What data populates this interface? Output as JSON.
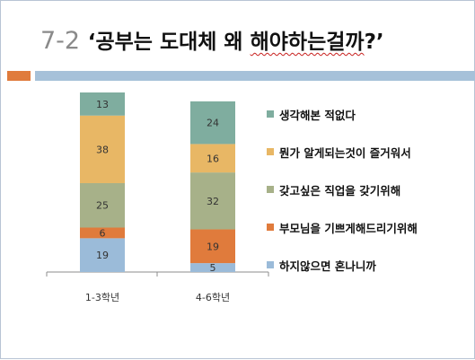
{
  "slide": {
    "title_number": "7-2",
    "title_open_quote": "‘",
    "title_part1": "공부는 도대체 왜 ",
    "title_part2": "해야하는걸까",
    "title_close": "?’"
  },
  "chart_data": {
    "type": "bar",
    "stacked": true,
    "categories": [
      "1-3학년",
      "4-6학년"
    ],
    "series": [
      {
        "name": "하지않으면 혼나니까",
        "values": [
          19,
          5
        ],
        "color": "#9bbbd9"
      },
      {
        "name": "부모님을 기쁘게해드리기위해",
        "values": [
          6,
          19
        ],
        "color": "#e07b3c"
      },
      {
        "name": "갖고싶은 직업을 갖기위해",
        "values": [
          25,
          32
        ],
        "color": "#a7b189"
      },
      {
        "name": "뭔가 알게되는것이 즐거워서",
        "values": [
          38,
          16
        ],
        "color": "#e8b765"
      },
      {
        "name": "생각해본 적없다",
        "values": [
          13,
          24
        ],
        "color": "#7fad9f"
      }
    ],
    "legend_order": [
      4,
      3,
      2,
      1,
      0
    ],
    "legend_position": "right",
    "grid": false,
    "ylim": [
      0,
      101
    ]
  }
}
